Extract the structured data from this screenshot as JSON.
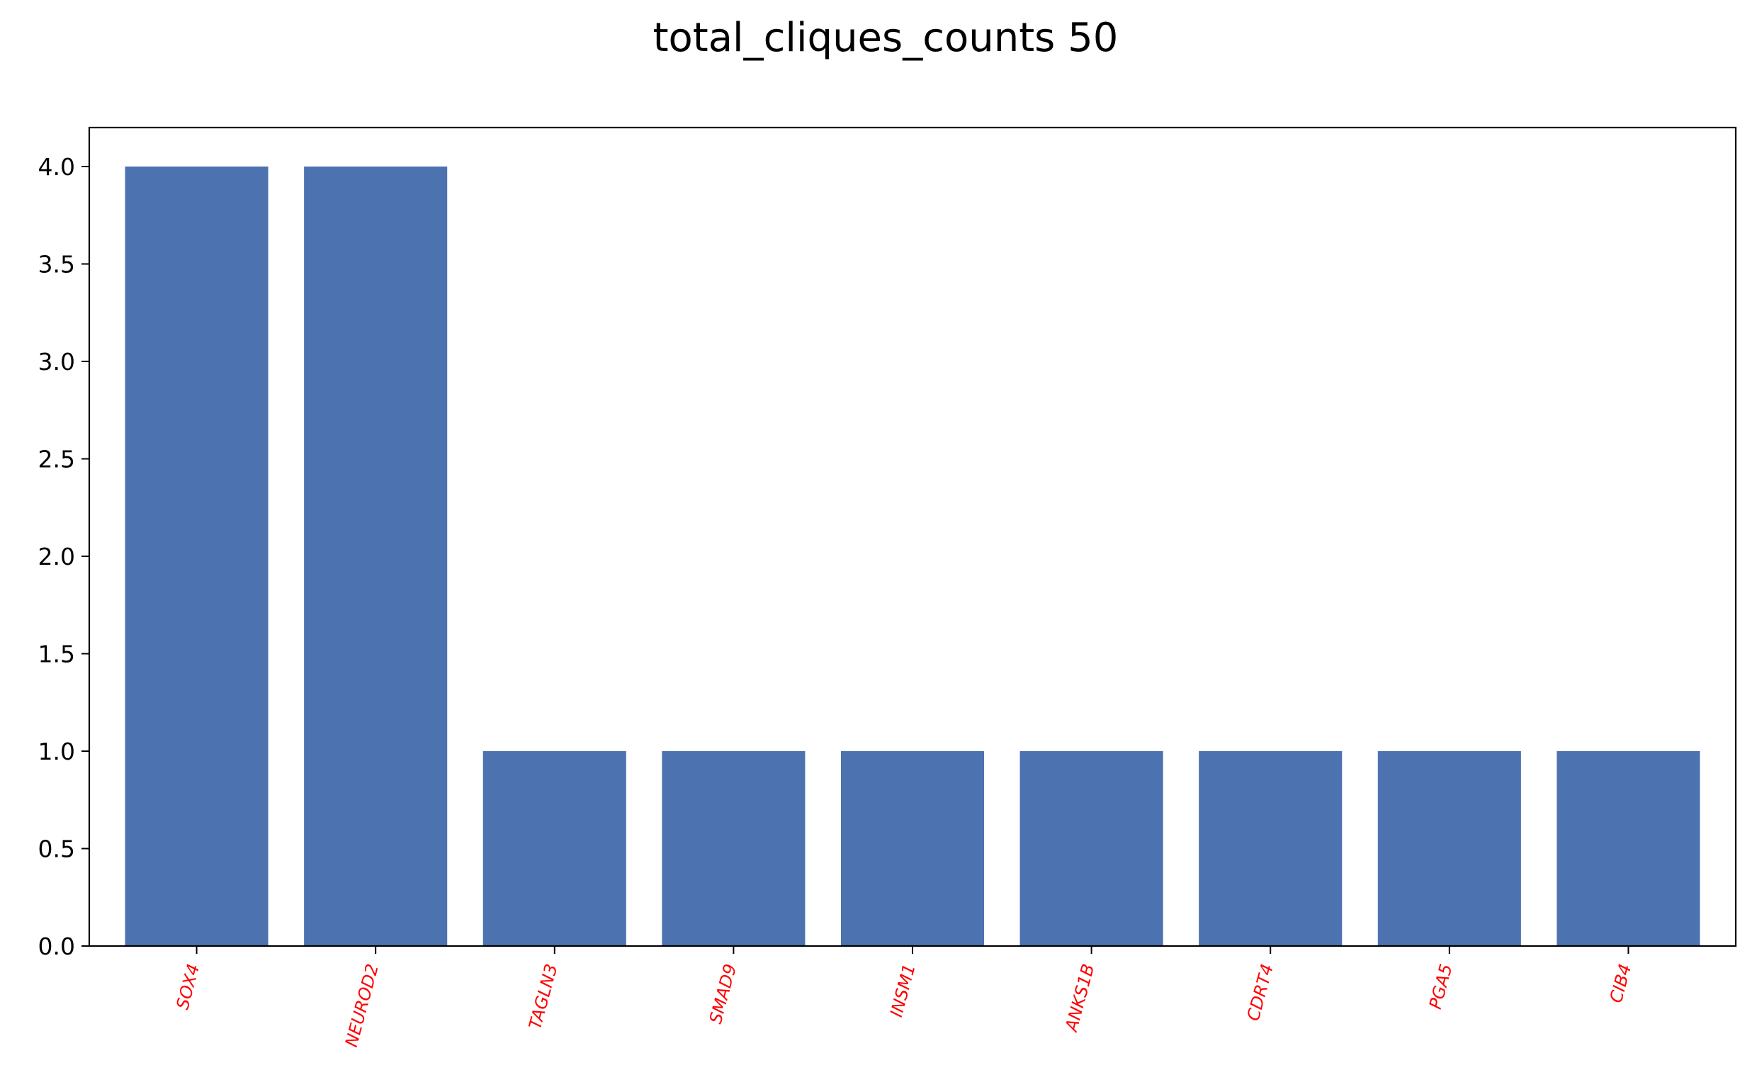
{
  "chart_data": {
    "type": "bar",
    "title": "total_cliques_counts 50",
    "xlabel": "",
    "ylabel": "",
    "categories": [
      "SOX4",
      "NEUROD2",
      "TAGLN3",
      "SMAD9",
      "INSM1",
      "ANKS1B",
      "CDRT4",
      "PGA5",
      "CIB4"
    ],
    "values": [
      4,
      4,
      1,
      1,
      1,
      1,
      1,
      1,
      1
    ],
    "ylim": [
      0,
      4.2
    ],
    "yticks": [
      "0.0",
      "0.5",
      "1.0",
      "1.5",
      "2.0",
      "2.5",
      "3.0",
      "3.5",
      "4.0"
    ],
    "grid": false,
    "legend": "none",
    "bar_color": "#4c72b0",
    "xtick_label_color": "#ff0000"
  }
}
